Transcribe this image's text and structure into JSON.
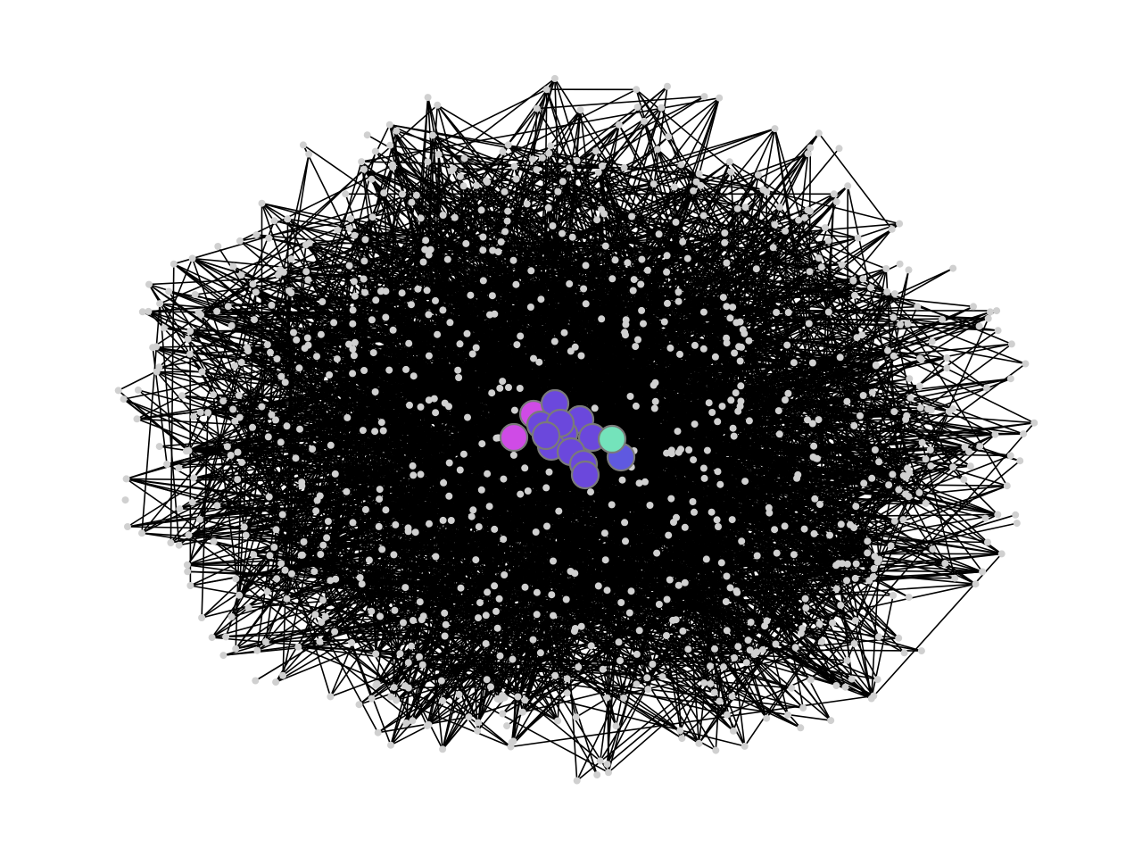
{
  "diagram": {
    "type": "network-graph",
    "layout": "force-directed",
    "background_color": "#ffffff",
    "edge_color": "#000000",
    "peripheral_node_color": "#d0d0d0",
    "hub_outline_color": "#7a7a7a",
    "peripheral_node_count": 900,
    "edge_count": 2600,
    "hub_nodes": [
      {
        "id": "hub-1",
        "color": "#cf4be6"
      },
      {
        "id": "hub-2",
        "color": "#cf4be6"
      },
      {
        "id": "hub-3",
        "color": "#6b48dc"
      },
      {
        "id": "hub-4",
        "color": "#6b48dc"
      },
      {
        "id": "hub-5",
        "color": "#6b48dc"
      },
      {
        "id": "hub-6",
        "color": "#6b48dc"
      },
      {
        "id": "hub-7",
        "color": "#6b48dc"
      },
      {
        "id": "hub-8",
        "color": "#6b48dc"
      },
      {
        "id": "hub-9",
        "color": "#6b48dc"
      },
      {
        "id": "hub-10",
        "color": "#6b48dc"
      },
      {
        "id": "hub-11",
        "color": "#6b48dc"
      },
      {
        "id": "hub-12",
        "color": "#6b48dc"
      },
      {
        "id": "hub-13",
        "color": "#6b48dc"
      },
      {
        "id": "hub-14",
        "color": "#5f59e0"
      },
      {
        "id": "hub-15",
        "color": "#74e3bb"
      }
    ]
  }
}
